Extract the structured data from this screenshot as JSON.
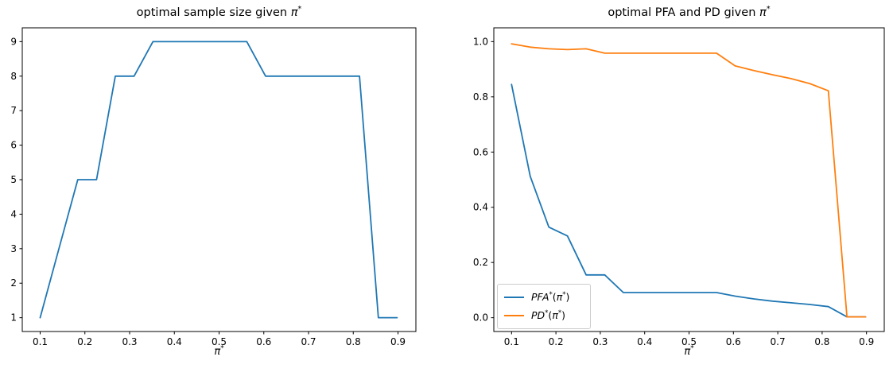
{
  "figure": {
    "background": "#ffffff",
    "text_color": "#000000",
    "spine_color": "#000000",
    "legend_border_color": "#cccccc",
    "series_colors": {
      "blue": "#1f77b4",
      "orange": "#ff7f0e"
    }
  },
  "chart_data": [
    {
      "type": "line",
      "title": "optimal sample size given π*",
      "title_parts": {
        "prefix": "optimal sample size given ",
        "pi": "π",
        "sup": "*"
      },
      "xlabel": "π*",
      "xlabel_parts": {
        "pi": "π",
        "sup": "*"
      },
      "grid": false,
      "legend": null,
      "xlim": [
        0.06,
        0.94
      ],
      "ylim": [
        0.6,
        9.4
      ],
      "x_ticks": [
        0.1,
        0.2,
        0.3,
        0.4,
        0.5,
        0.6,
        0.7,
        0.8,
        0.9
      ],
      "x_tick_labels": [
        "0.1",
        "0.2",
        "0.3",
        "0.4",
        "0.5",
        "0.6",
        "0.7",
        "0.8",
        "0.9"
      ],
      "y_ticks": [
        1,
        2,
        3,
        4,
        5,
        6,
        7,
        8,
        9
      ],
      "y_tick_labels": [
        "1",
        "2",
        "3",
        "4",
        "5",
        "6",
        "7",
        "8",
        "9"
      ],
      "x": [
        0.1,
        0.142,
        0.184,
        0.226,
        0.268,
        0.31,
        0.352,
        0.394,
        0.436,
        0.478,
        0.52,
        0.562,
        0.604,
        0.646,
        0.688,
        0.73,
        0.772,
        0.814,
        0.856,
        0.898
      ],
      "series": [
        {
          "name": "optimal sample size",
          "color": "#1f77b4",
          "values": [
            1,
            3,
            5,
            5,
            8,
            8,
            9,
            9,
            9,
            9,
            9,
            9,
            8,
            8,
            8,
            8,
            8,
            8,
            1,
            1
          ]
        }
      ]
    },
    {
      "type": "line",
      "title": "optimal PFA and PD given π*",
      "title_parts": {
        "prefix": "optimal PFA and PD given ",
        "pi": "π",
        "sup": "*"
      },
      "xlabel": "π*",
      "xlabel_parts": {
        "pi": "π",
        "sup": "*"
      },
      "grid": false,
      "legend": {
        "position": "lower left",
        "entries": [
          {
            "label": "PFA*(π*)",
            "color": "#1f77b4",
            "parts": {
              "fn": "PFA",
              "fn_sup": "*",
              "arg_open": "(",
              "arg": "π",
              "arg_sup": "*",
              "arg_close": ")"
            }
          },
          {
            "label": "PD*(π*)",
            "color": "#ff7f0e",
            "parts": {
              "fn": "PD",
              "fn_sup": "*",
              "arg_open": "(",
              "arg": "π",
              "arg_sup": "*",
              "arg_close": ")"
            }
          }
        ]
      },
      "xlim": [
        0.06,
        0.94
      ],
      "ylim": [
        -0.05,
        1.05
      ],
      "x_ticks": [
        0.1,
        0.2,
        0.3,
        0.4,
        0.5,
        0.6,
        0.7,
        0.8,
        0.9
      ],
      "x_tick_labels": [
        "0.1",
        "0.2",
        "0.3",
        "0.4",
        "0.5",
        "0.6",
        "0.7",
        "0.8",
        "0.9"
      ],
      "y_ticks": [
        0.0,
        0.2,
        0.4,
        0.6,
        0.8,
        1.0
      ],
      "y_tick_labels": [
        "0.0",
        "0.2",
        "0.4",
        "0.6",
        "0.8",
        "1.0"
      ],
      "x": [
        0.1,
        0.142,
        0.184,
        0.226,
        0.268,
        0.31,
        0.352,
        0.394,
        0.436,
        0.478,
        0.52,
        0.562,
        0.604,
        0.646,
        0.688,
        0.73,
        0.772,
        0.814,
        0.856,
        0.898
      ],
      "series": [
        {
          "name": "PFA*(π*)",
          "color": "#1f77b4",
          "values": [
            0.845,
            0.512,
            0.328,
            0.296,
            0.155,
            0.155,
            0.091,
            0.091,
            0.091,
            0.091,
            0.091,
            0.091,
            0.078,
            0.068,
            0.06,
            0.054,
            0.048,
            0.04,
            0.003,
            0.003
          ]
        },
        {
          "name": "PD*(π*)",
          "color": "#ff7f0e",
          "values": [
            0.992,
            0.98,
            0.974,
            0.971,
            0.974,
            0.958,
            0.958,
            0.958,
            0.958,
            0.958,
            0.958,
            0.958,
            0.912,
            0.895,
            0.88,
            0.866,
            0.848,
            0.822,
            0.003,
            0.003
          ]
        }
      ]
    }
  ]
}
